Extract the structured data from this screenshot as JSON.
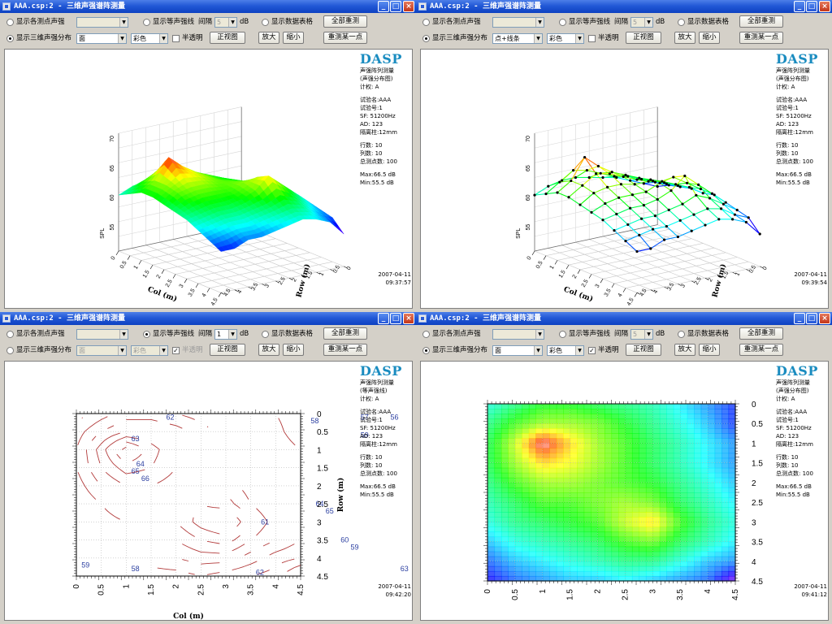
{
  "windows": [
    {
      "title": "AAA.csp:2 - 三维声强谱阵测量",
      "radio_show_each_label": "显示各测点声强",
      "radio_show_3d_label": "显示三维声强分布",
      "radio_show_contour_label": "显示等声强线",
      "radio_show_table_label": "显示数据表格",
      "selected_mode": "3d",
      "interval_label": "间隔",
      "interval_value": "5",
      "interval_unit": "dB",
      "render_style": "面",
      "color_mode": "彩色",
      "translucent_label": "半透明",
      "translucent_checked": false,
      "front_view_label": "正视图",
      "zoom_in_label": "放大",
      "zoom_out_label": "缩小",
      "remeasure_all_label": "全部重测",
      "remeasure_one_label": "重测某一点",
      "logo": "DASP",
      "info": {
        "heading": "声强阵列测量",
        "subheading": "(声强分布图)",
        "unit": "计权: A",
        "test_name": "试验名:AAA",
        "test_no": "试验号:1",
        "sf": "SF: 51200Hz",
        "ad": "AD: 123",
        "column_gap": "隔离柱:12mm",
        "rows": "行数: 10",
        "cols": "列数: 10",
        "total_points": "总测点数: 100",
        "max": "Max:66.5 dB",
        "min": "Min:55.5 dB"
      },
      "date": "2007-04-11",
      "time": "09:37:57",
      "chart": {
        "kind": "surface",
        "z_axis_label": "SPL",
        "z_ticks": [
          "70",
          "65",
          "60",
          "55"
        ],
        "col_axis_label": "Col (m)",
        "row_axis_label": "Row (m)",
        "col_ticks": [
          "0",
          "0.5",
          "1",
          "1.5",
          "2",
          "2.5",
          "3",
          "3.5",
          "4",
          "4.5"
        ],
        "row_ticks": [
          "0",
          "0.5",
          "1",
          "1.5",
          "2",
          "2.5",
          "3",
          "3.5",
          "4",
          "4.5"
        ]
      }
    },
    {
      "title": "AAA.csp:2 - 三维声强谱阵测量",
      "radio_show_each_label": "显示各测点声强",
      "radio_show_3d_label": "显示三维声强分布",
      "radio_show_contour_label": "显示等声强线",
      "radio_show_table_label": "显示数据表格",
      "selected_mode": "3d",
      "interval_label": "间隔",
      "interval_value": "5",
      "interval_unit": "dB",
      "render_style": "点+线条",
      "color_mode": "彩色",
      "translucent_label": "半透明",
      "translucent_checked": false,
      "front_view_label": "正视图",
      "zoom_in_label": "放大",
      "zoom_out_label": "缩小",
      "remeasure_all_label": "全部重测",
      "remeasure_one_label": "重测某一点",
      "logo": "DASP",
      "info": {
        "heading": "声强阵列测量",
        "subheading": "(声强分布图)",
        "unit": "计权: A",
        "test_name": "试验名:AAA",
        "test_no": "试验号:1",
        "sf": "SF: 51200Hz",
        "ad": "AD: 123",
        "column_gap": "隔离柱:12mm",
        "rows": "行数: 10",
        "cols": "列数: 10",
        "total_points": "总测点数: 100",
        "max": "Max:66.5 dB",
        "min": "Min:55.5 dB"
      },
      "date": "2007-04-11",
      "time": "09:39:54",
      "chart": {
        "kind": "wireframe",
        "z_axis_label": "SPL",
        "z_ticks": [
          "70",
          "65",
          "60",
          "55"
        ],
        "col_axis_label": "Col (m)",
        "row_axis_label": "Row (m)",
        "col_ticks": [
          "0",
          "0.5",
          "1",
          "1.5",
          "2",
          "2.5",
          "3",
          "3.5",
          "4",
          "4.5"
        ],
        "row_ticks": [
          "0",
          "0.5",
          "1",
          "1.5",
          "2",
          "2.5",
          "3",
          "3.5",
          "4",
          "4.5"
        ]
      }
    },
    {
      "title": "AAA.csp:2 - 三维声强谱阵测量",
      "radio_show_each_label": "显示各测点声强",
      "radio_show_3d_label": "显示三维声强分布",
      "radio_show_contour_label": "显示等声强线",
      "radio_show_table_label": "显示数据表格",
      "selected_mode": "contour",
      "interval_label": "间隔",
      "interval_value": "1",
      "interval_unit": "dB",
      "render_style": "面",
      "color_mode": "彩色",
      "translucent_label": "半透明",
      "translucent_checked": true,
      "front_view_label": "正视图",
      "zoom_in_label": "放大",
      "zoom_out_label": "缩小",
      "remeasure_all_label": "全部重测",
      "remeasure_one_label": "重测某一点",
      "logo": "DASP",
      "info": {
        "heading": "声强阵列测量",
        "subheading": "(等声强线)",
        "unit": "计权: A",
        "test_name": "试验名:AAA",
        "test_no": "试验号:1",
        "sf": "SF: 51200Hz",
        "ad": "AD: 123",
        "column_gap": "隔离柱:12mm",
        "rows": "行数: 10",
        "cols": "列数: 10",
        "total_points": "总测点数: 100",
        "max": "Max:66.5 dB",
        "min": "Min:55.5 dB"
      },
      "date": "2007-04-11",
      "time": "09:42:20",
      "chart": {
        "kind": "contour",
        "col_axis_label": "Col (m)",
        "row_axis_label": "Row (m)",
        "col_ticks": [
          "0",
          "0.5",
          "1",
          "1.5",
          "2",
          "2.5",
          "3",
          "3.5",
          "4",
          "4.5"
        ],
        "row_ticks": [
          "0",
          "0.5",
          "1",
          "1.5",
          "2",
          "2.5",
          "3",
          "3.5",
          "4",
          "4.5"
        ],
        "contour_labels": [
          "62",
          "63",
          "64",
          "65",
          "66",
          "58",
          "57",
          "56",
          "59",
          "61",
          "60",
          "59",
          "58",
          "59",
          "58",
          "62",
          "63",
          "64",
          "65"
        ]
      }
    },
    {
      "title": "AAA.csp:2 - 三维声强谱阵测量",
      "radio_show_each_label": "显示各测点声强",
      "radio_show_3d_label": "显示三维声强分布",
      "radio_show_contour_label": "显示等声强线",
      "radio_show_table_label": "显示数据表格",
      "selected_mode": "3d",
      "interval_label": "间隔",
      "interval_value": "5",
      "interval_unit": "dB",
      "render_style": "面",
      "color_mode": "彩色",
      "translucent_label": "半透明",
      "translucent_checked": true,
      "front_view_label": "正视图",
      "zoom_in_label": "放大",
      "zoom_out_label": "缩小",
      "remeasure_all_label": "全部重测",
      "remeasure_one_label": "重测某一点",
      "logo": "DASP",
      "info": {
        "heading": "声强阵列测量",
        "subheading": "(声强分布图)",
        "unit": "计权: A",
        "test_name": "试验名:AAA",
        "test_no": "试验号:1",
        "sf": "SF: 51200Hz",
        "ad": "AD: 123",
        "column_gap": "隔离柱:12mm",
        "rows": "行数: 10",
        "cols": "列数: 10",
        "total_points": "总测点数: 100",
        "max": "Max:66.5 dB",
        "min": "Min:55.5 dB"
      },
      "date": "2007-04-11",
      "time": "09:41:12",
      "chart": {
        "kind": "heatmap",
        "col_ticks": [
          "0",
          "0.5",
          "1",
          "1.5",
          "2",
          "2.5",
          "3",
          "3.5",
          "4",
          "4.5"
        ],
        "row_ticks": [
          "0",
          "0.5",
          "1",
          "1.5",
          "2",
          "2.5",
          "3",
          "3.5",
          "4",
          "4.5"
        ]
      }
    }
  ],
  "chart_data": {
    "type": "heatmap",
    "xlabel": "Col (m)",
    "ylabel": "Row (m)",
    "x": [
      0,
      0.5,
      1,
      1.5,
      2,
      2.5,
      3,
      3.5,
      4,
      4.5
    ],
    "y": [
      0,
      0.5,
      1,
      1.5,
      2,
      2.5,
      3,
      3.5,
      4,
      4.5
    ],
    "zlim": [
      55.5,
      66.5
    ],
    "z": [
      [
        59.5,
        60.5,
        61.5,
        61.5,
        61,
        60.5,
        60,
        59,
        58,
        57
      ],
      [
        60.5,
        62,
        63,
        63,
        62.5,
        61.5,
        60.5,
        59.5,
        58.5,
        57
      ],
      [
        61,
        63.5,
        66.5,
        64.5,
        63,
        62,
        61,
        60,
        59,
        58
      ],
      [
        61,
        63,
        64.5,
        64,
        63,
        62,
        61,
        60,
        59,
        58
      ],
      [
        60.5,
        62,
        63,
        63,
        62.5,
        62,
        61.5,
        60.5,
        59.5,
        58.5
      ],
      [
        60,
        61,
        62,
        62,
        62.5,
        63,
        62.5,
        61,
        60,
        59
      ],
      [
        59.5,
        60.5,
        61,
        61.5,
        62,
        63.5,
        64.5,
        62,
        60.5,
        59.5
      ],
      [
        58.5,
        59.5,
        60,
        60.5,
        61,
        62,
        62.5,
        61,
        60,
        59
      ],
      [
        57.5,
        58.5,
        59,
        59.5,
        60,
        60.5,
        60.5,
        59.5,
        58.5,
        58
      ],
      [
        56.5,
        57.5,
        58,
        58.5,
        58.5,
        59,
        58.5,
        58,
        57.5,
        55.5
      ]
    ]
  }
}
